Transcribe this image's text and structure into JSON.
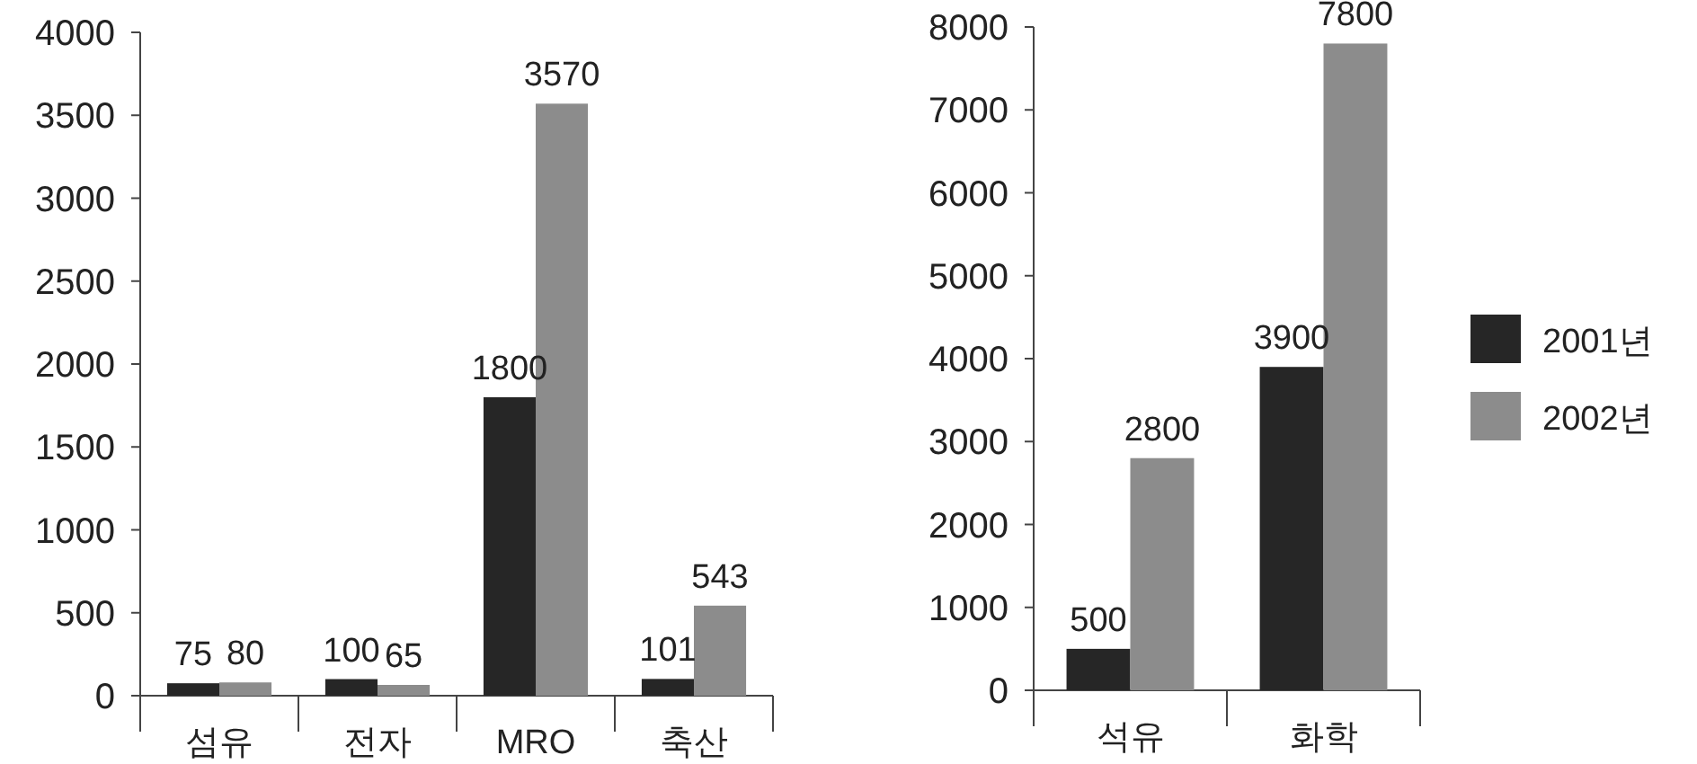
{
  "chart_data": [
    {
      "type": "bar",
      "categories": [
        "섬유",
        "전자",
        "MRO",
        "축산"
      ],
      "ylim": [
        0,
        4000
      ],
      "yticks": [
        0,
        500,
        1000,
        1500,
        2000,
        2500,
        3000,
        3500,
        4000
      ],
      "data_labels": true,
      "legend": false,
      "series": [
        {
          "color": "#262626",
          "values": [
            75,
            100,
            1800,
            101
          ]
        },
        {
          "color": "#8c8c8c",
          "values": [
            80,
            65,
            3570,
            543
          ]
        }
      ]
    },
    {
      "type": "bar",
      "categories": [
        "석유",
        "화학"
      ],
      "ylim": [
        0,
        8000
      ],
      "yticks": [
        0,
        1000,
        2000,
        3000,
        4000,
        5000,
        6000,
        7000,
        8000
      ],
      "data_labels": true,
      "legend": "right",
      "series": [
        {
          "name": "2001년",
          "color": "#262626",
          "values": [
            500,
            3900
          ]
        },
        {
          "name": "2002년",
          "color": "#8c8c8c",
          "values": [
            2800,
            7800
          ]
        }
      ]
    }
  ]
}
